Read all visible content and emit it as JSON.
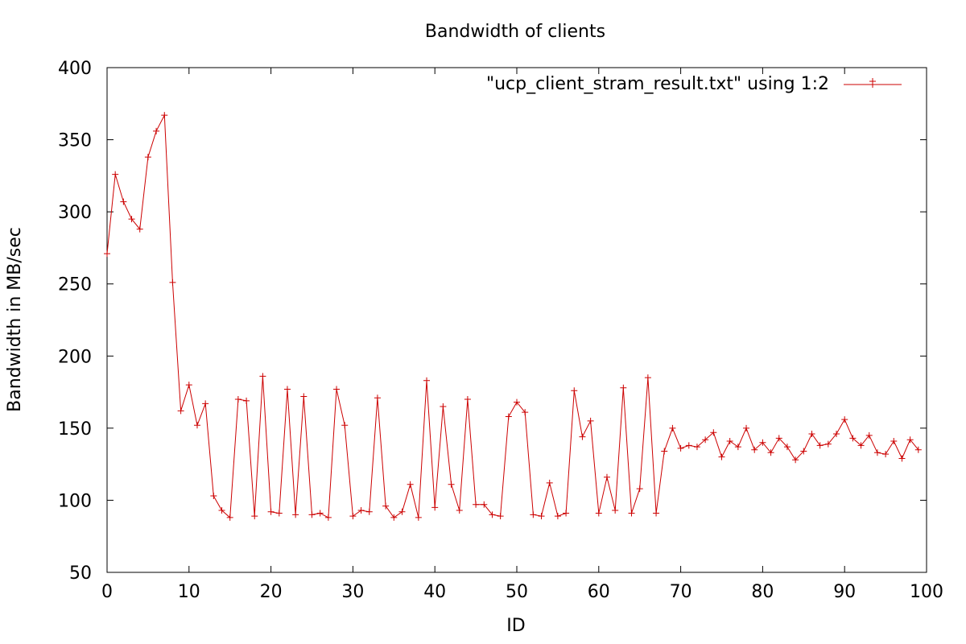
{
  "chart_data": {
    "type": "line",
    "title": "Bandwidth of clients",
    "xlabel": "ID",
    "ylabel": "Bandwidth in MB/sec",
    "xlim": [
      0,
      100
    ],
    "ylim": [
      50,
      400
    ],
    "xticks": [
      0,
      10,
      20,
      30,
      40,
      50,
      60,
      70,
      80,
      90,
      100
    ],
    "yticks": [
      50,
      100,
      150,
      200,
      250,
      300,
      350,
      400
    ],
    "grid": false,
    "legend_position": "top-right",
    "series": [
      {
        "name": "\"ucp_client_stram_result.txt\" using 1:2",
        "color": "#cc0000",
        "marker": "plus",
        "x": [
          0,
          1,
          2,
          3,
          4,
          5,
          6,
          7,
          8,
          9,
          10,
          11,
          12,
          13,
          14,
          15,
          16,
          17,
          18,
          19,
          20,
          21,
          22,
          23,
          24,
          25,
          26,
          27,
          28,
          29,
          30,
          31,
          32,
          33,
          34,
          35,
          36,
          37,
          38,
          39,
          40,
          41,
          42,
          43,
          44,
          45,
          46,
          47,
          48,
          49,
          50,
          51,
          52,
          53,
          54,
          55,
          56,
          57,
          58,
          59,
          60,
          61,
          62,
          63,
          64,
          65,
          66,
          67,
          68,
          69,
          70,
          71,
          72,
          73,
          74,
          75,
          76,
          77,
          78,
          79,
          80,
          81,
          82,
          83,
          84,
          85,
          86,
          87,
          88,
          89,
          90,
          91,
          92,
          93,
          94,
          95,
          96,
          97,
          98,
          99
        ],
        "y": [
          271,
          326,
          307,
          295,
          288,
          338,
          356,
          367,
          251,
          162,
          180,
          152,
          167,
          103,
          93,
          88,
          170,
          169,
          89,
          186,
          92,
          91,
          177,
          90,
          172,
          90,
          91,
          88,
          177,
          152,
          89,
          93,
          92,
          171,
          96,
          88,
          92,
          111,
          88,
          183,
          95,
          165,
          111,
          93,
          170,
          97,
          97,
          90,
          89,
          158,
          168,
          161,
          90,
          89,
          112,
          89,
          91,
          176,
          144,
          155,
          91,
          116,
          93,
          178,
          91,
          108,
          185,
          91,
          134,
          150,
          136,
          138,
          137,
          142,
          147,
          130,
          141,
          137,
          150,
          135,
          140,
          133,
          143,
          137,
          128,
          134,
          146,
          138,
          139,
          146,
          156,
          143,
          138,
          145,
          133,
          132,
          141,
          129,
          142,
          135
        ]
      }
    ]
  }
}
